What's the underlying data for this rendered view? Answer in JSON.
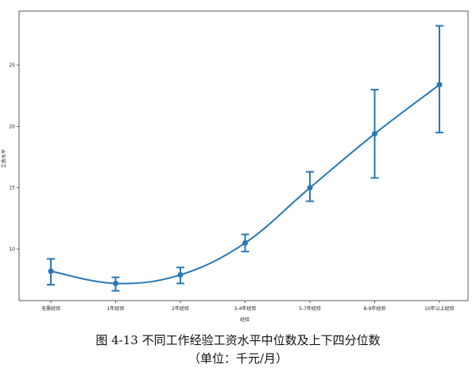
{
  "chart_data": {
    "type": "line",
    "xlabel": "经验",
    "ylabel": "工资水平",
    "categories": [
      "无需经验",
      "1年经验",
      "2年经验",
      "3-4年经验",
      "5-7年经验",
      "8-9年经验",
      "10年以上经验"
    ],
    "series": [
      {
        "values": [
          8.2,
          7.2,
          7.9,
          10.5,
          15.0,
          19.4,
          23.4
        ],
        "lower": [
          7.1,
          6.6,
          7.2,
          9.8,
          13.9,
          15.8,
          19.5
        ],
        "upper": [
          9.2,
          7.7,
          8.5,
          11.2,
          16.3,
          23.0,
          28.2
        ]
      }
    ],
    "ylim": [
      5.8,
      29.4
    ],
    "yticks": [
      10,
      15,
      20,
      25
    ],
    "grid": false,
    "color": "#2878b5"
  },
  "caption": {
    "title": "图 4-13 不同工作经验工资水平中位数及上下四分位数",
    "unit": "（单位：千元/月）"
  }
}
